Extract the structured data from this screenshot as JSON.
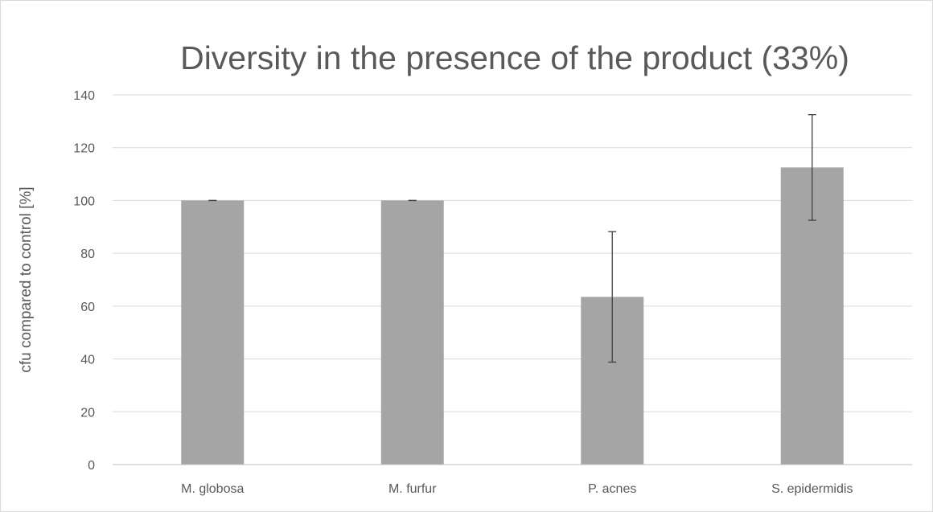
{
  "chart_data": {
    "type": "bar",
    "title": "Diversity in the presence of the product (33%)",
    "xlabel": "",
    "ylabel": "cfu compared to control [%]",
    "ylim": [
      0,
      140
    ],
    "yticks": [
      0,
      20,
      40,
      60,
      80,
      100,
      120,
      140
    ],
    "categories": [
      "M. globosa",
      "M. furfur",
      "P. acnes",
      "S. epidermidis"
    ],
    "values": [
      100,
      100,
      63.5,
      112.5
    ],
    "error": [
      0,
      0,
      24.7,
      20.0
    ],
    "grid": true,
    "legend": "none",
    "bar_color": "#a5a5a5"
  }
}
